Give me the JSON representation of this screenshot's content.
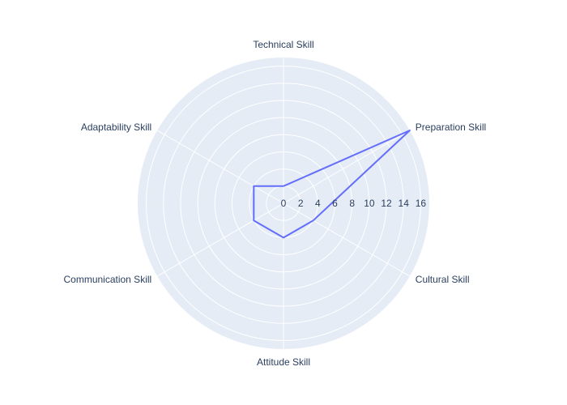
{
  "chart_data": {
    "type": "radar",
    "categories": [
      "Technical Skill",
      "Preparation Skill",
      "Cultural Skill",
      "Attitude Skill",
      "Communication Skill",
      "Adaptability Skill"
    ],
    "series": [
      {
        "values": [
          2,
          17,
          4,
          4,
          4,
          4
        ]
      }
    ],
    "radial_range": [
      0,
      17
    ],
    "radial_ticks": [
      0,
      2,
      4,
      6,
      8,
      10,
      12,
      14,
      16
    ],
    "grid": true,
    "legend": "none",
    "colors": {
      "polar_background": "#e5ecf6",
      "grid": "#ffffff",
      "series_line": "#636efa",
      "text": "#2a3f5f"
    }
  }
}
